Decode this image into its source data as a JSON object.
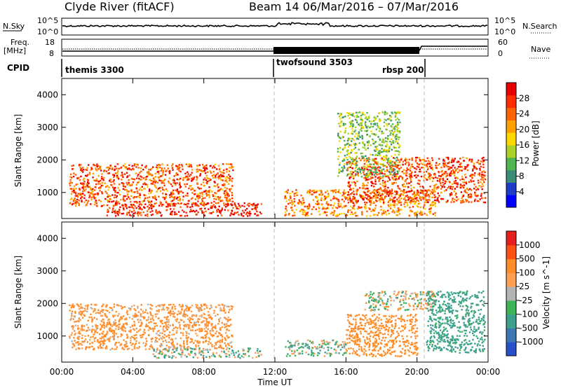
{
  "header": {
    "title": "Clyde River (fitACF)",
    "beam_dates": "Beam 14  06/Mar/2016 – 07/Mar/2016"
  },
  "top_panels": {
    "nsky_label": "N.Sky",
    "nsky_ticks": [
      "10^5",
      "10^0"
    ],
    "nsearch_label": "N.Search",
    "nsearch_ticks": [
      "10^5",
      "10^0"
    ],
    "freq_label_1": "Freq.",
    "freq_label_2": "[MHz]",
    "freq_ticks": [
      "18",
      "8"
    ],
    "nave_label": "Nave",
    "nave_ticks": [
      "60",
      "0"
    ],
    "cpid_label": "CPID",
    "cpid_segments": [
      {
        "name": "themis 3300",
        "start_hr": 0
      },
      {
        "name": "twofsound 3503",
        "start_hr": 12
      },
      {
        "name": "rbsp 200",
        "start_hr": 19.7
      }
    ]
  },
  "power_colorbar": {
    "label": "Power [dB]",
    "ticks": [
      "28",
      "24",
      "20",
      "16",
      "12",
      "8",
      "4"
    ],
    "colors": [
      "#0000ff",
      "#1e3cc8",
      "#3c8c78",
      "#50b450",
      "#aad228",
      "#ffd700",
      "#ffa000",
      "#ff6400",
      "#ff2d00",
      "#e60000"
    ]
  },
  "velocity_colorbar": {
    "label": "Velocity [m s^-1]",
    "ticks": [
      "1000",
      "500",
      "100",
      "25",
      "-25",
      "-100",
      "-500",
      "-1000"
    ],
    "colors": [
      "#2850c8",
      "#3c78b4",
      "#3ca08c",
      "#3cb45a",
      "#b4b4b4",
      "#ffa050",
      "#ff8c28",
      "#ff5014",
      "#e61e1e"
    ]
  },
  "time_axis": {
    "label": "Time UT",
    "ticks": [
      "00:00",
      "04:00",
      "08:00",
      "12:00",
      "16:00",
      "20:00",
      "00:00"
    ]
  },
  "chart_data": [
    {
      "type": "heatmap",
      "panel": "power",
      "xlabel": "Time UT",
      "ylabel": "Slant Range [km]",
      "xlim": [
        0,
        24
      ],
      "ylim": [
        200,
        4500
      ],
      "yticks": [
        1000,
        2000,
        3000,
        4000
      ],
      "colorbar_label": "Power [dB]",
      "colorbar_range": [
        3,
        30
      ],
      "regions": [
        {
          "t0": 0.4,
          "t1": 9.6,
          "r0": 600,
          "r1": 1900,
          "value": 24
        },
        {
          "t0": 2.5,
          "t1": 11.2,
          "r0": 300,
          "r1": 700,
          "value": 27
        },
        {
          "t0": 12.5,
          "t1": 21.0,
          "r0": 300,
          "r1": 1100,
          "value": 22
        },
        {
          "t0": 16.0,
          "t1": 23.8,
          "r0": 700,
          "r1": 2100,
          "value": 25
        },
        {
          "t0": 15.5,
          "t1": 19.0,
          "r0": 1500,
          "r1": 3500,
          "value": 14
        }
      ]
    },
    {
      "type": "heatmap",
      "panel": "velocity",
      "xlabel": "Time UT",
      "ylabel": "Slant Range [km]",
      "xlim": [
        0,
        24
      ],
      "ylim": [
        200,
        4500
      ],
      "yticks": [
        1000,
        2000,
        3000,
        4000
      ],
      "colorbar_label": "Velocity [m s^-1]",
      "colorbar_range": [
        -1000,
        1000
      ],
      "regions": [
        {
          "t0": 0.4,
          "t1": 9.6,
          "r0": 600,
          "r1": 2000,
          "value": -150
        },
        {
          "t0": 5.0,
          "t1": 11.2,
          "r0": 350,
          "r1": 650,
          "value": 40
        },
        {
          "t0": 12.5,
          "t1": 16.0,
          "r0": 400,
          "r1": 900,
          "value": 60
        },
        {
          "t0": 16.0,
          "t1": 20.0,
          "r0": 400,
          "r1": 1700,
          "value": -300
        },
        {
          "t0": 17.0,
          "t1": 21.0,
          "r0": 1800,
          "r1": 2400,
          "value": 0
        },
        {
          "t0": 20.5,
          "t1": 23.8,
          "r0": 500,
          "r1": 2400,
          "value": 200
        }
      ]
    }
  ]
}
